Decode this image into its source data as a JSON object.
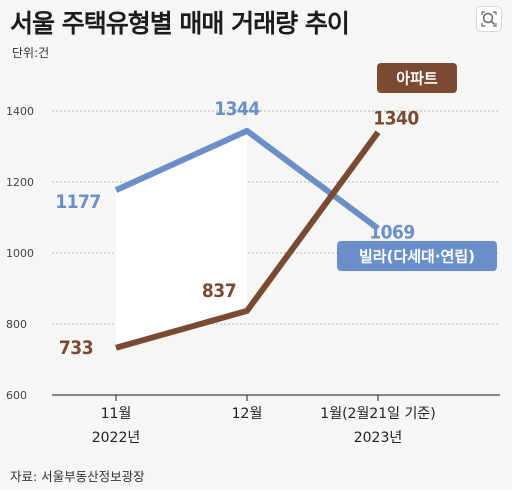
{
  "title": "서울 주택유형별 매매 거래량 추이",
  "unit": "단위:건",
  "source": "자료: 서울부동산정보광장",
  "colors": {
    "apartment": "#7b4a33",
    "villa": "#6b8fc9",
    "gap_fill": "#ffffff"
  },
  "icons": {
    "lens": "search-zoom-icon"
  },
  "chart_data": {
    "type": "line",
    "title": "서울 주택유형별 매매 거래량 추이",
    "ylabel": "단위:건",
    "ylim": [
      600,
      1400
    ],
    "yticks": [
      "1400",
      "1200",
      "1000",
      "800",
      "600"
    ],
    "grid": true,
    "categories": [
      {
        "line1": "11월",
        "line2": "2022년"
      },
      {
        "line1": "12월",
        "line2": ""
      },
      {
        "line1": "1월(2월21일 기준)",
        "line2": "2023년"
      }
    ],
    "series": [
      {
        "name": "아파트",
        "values": [
          733,
          837,
          1340
        ],
        "labels": [
          "733",
          "837",
          "1340"
        ]
      },
      {
        "name": "빌라(다세대·연립)",
        "values": [
          1177,
          1344,
          1069
        ],
        "labels": [
          "1177",
          "1344",
          "1069"
        ]
      }
    ]
  }
}
